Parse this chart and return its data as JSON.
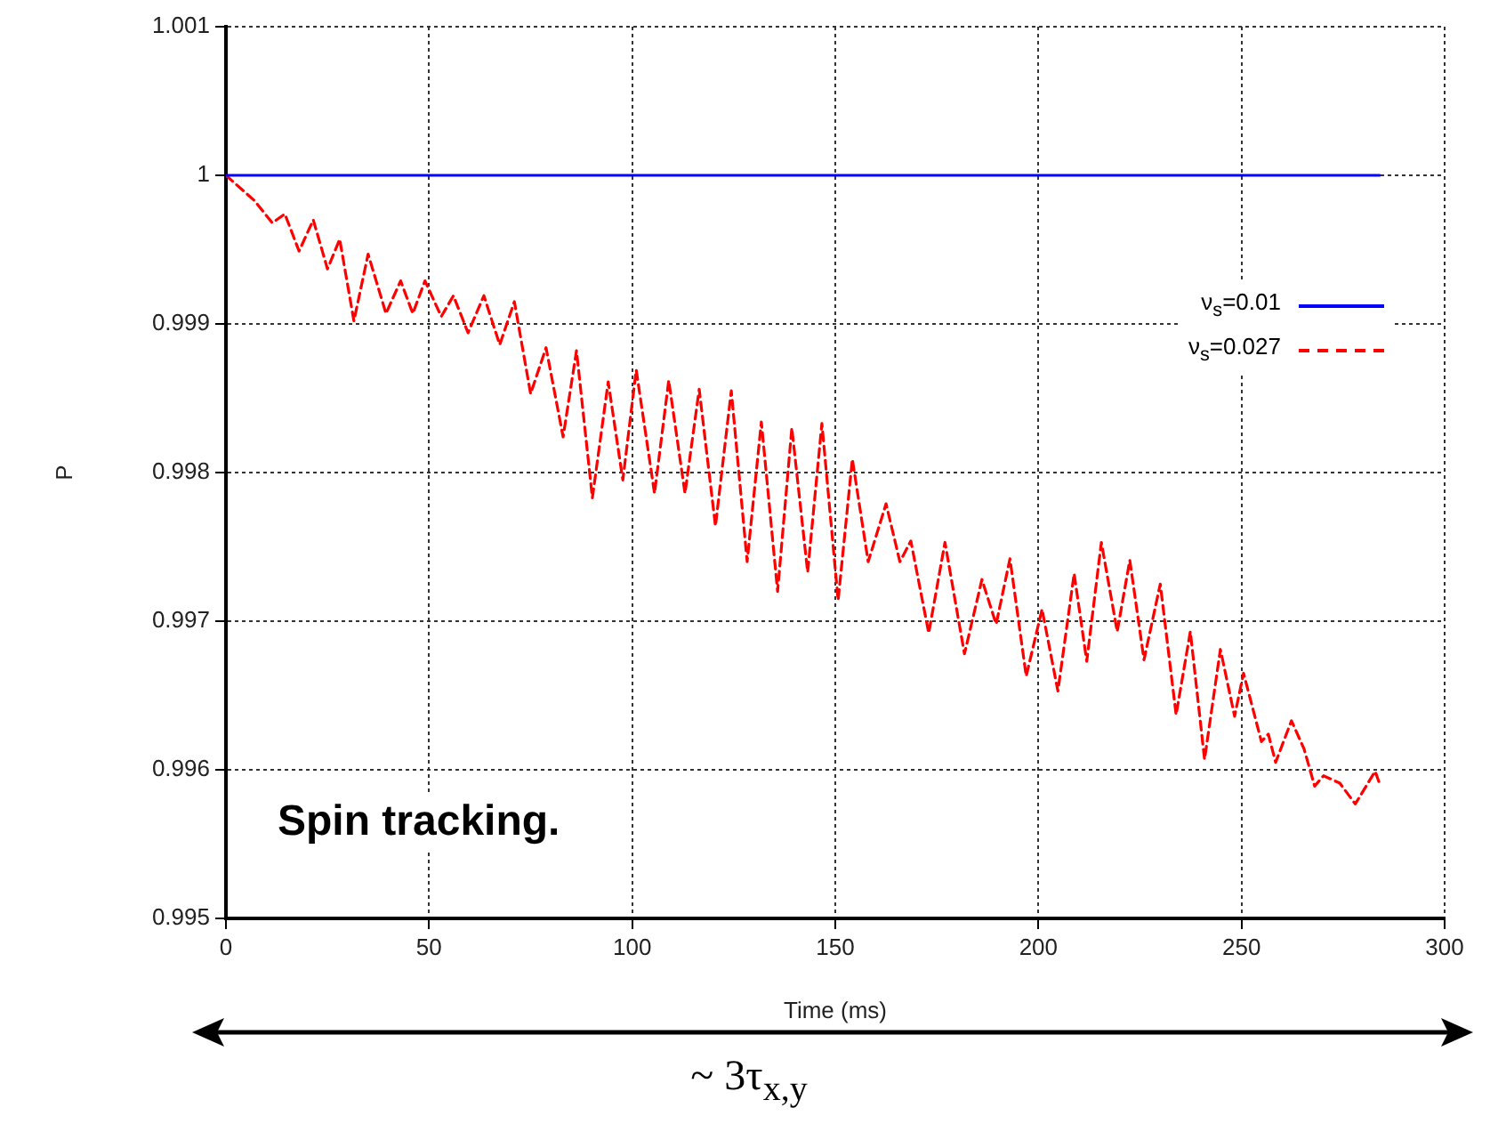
{
  "chart_data": {
    "type": "line",
    "xlabel": "Time (ms)",
    "ylabel": "P",
    "xlim": [
      0,
      300
    ],
    "xticks": [
      0,
      50,
      100,
      150,
      200,
      250,
      300
    ],
    "ylim": [
      0.995,
      1.001
    ],
    "yticks": [
      0.995,
      0.996,
      0.997,
      0.998,
      0.999,
      1,
      1.001
    ],
    "grid": true,
    "legend": "right",
    "marker": "none",
    "annotations": [
      "Spin tracking.",
      "~ 3τ$_{x,y}$"
    ],
    "series": [
      {
        "name": "ν$_{s}$=0.01",
        "color": "#0000ff",
        "line_style": "solid",
        "x": [
          0,
          284
        ],
        "values": [
          1,
          1
        ]
      },
      {
        "name": "ν$_{s}$=0.027",
        "color": "#ff0000",
        "line_style": "dashed",
        "x": [
          0,
          7,
          11.4,
          14.5,
          18,
          21.5,
          25,
          28,
          31.5,
          35,
          39.4,
          43,
          46,
          49,
          53,
          56,
          59.6,
          63.5,
          67.4,
          71,
          75,
          78.8,
          83,
          86.3,
          90.2,
          94.1,
          97.7,
          101,
          105.5,
          109,
          113,
          116.5,
          120.5,
          124.4,
          128.3,
          131.8,
          135.8,
          139.3,
          143.2,
          146.7,
          150.7,
          154.2,
          158.1,
          162.5,
          165.9,
          168.6,
          173,
          177,
          181.8,
          186.1,
          189.6,
          193,
          197,
          200.9,
          204.8,
          208.8,
          211.9,
          215.5,
          219.4,
          222.5,
          226,
          230,
          233.9,
          237.4,
          240.9,
          244.8,
          248.3,
          250.5,
          254.9,
          256.6,
          258.4,
          262.3,
          265.4,
          268,
          270.2,
          274.2,
          278,
          282.9,
          284.2
        ],
        "values": [
          1,
          0.99983,
          0.99968,
          0.99974,
          0.99949,
          0.9997,
          0.99937,
          0.99957,
          0.99902,
          0.99947,
          0.99907,
          0.99929,
          0.99907,
          0.99929,
          0.99905,
          0.99919,
          0.99894,
          0.99919,
          0.99886,
          0.99915,
          0.99853,
          0.99884,
          0.99824,
          0.99882,
          0.99783,
          0.99861,
          0.99795,
          0.99869,
          0.99786,
          0.99862,
          0.99786,
          0.99856,
          0.99764,
          0.99855,
          0.9974,
          0.99834,
          0.9972,
          0.9983,
          0.99733,
          0.99833,
          0.99714,
          0.99809,
          0.9974,
          0.99779,
          0.9974,
          0.99754,
          0.99692,
          0.99753,
          0.99678,
          0.99728,
          0.99698,
          0.99742,
          0.99663,
          0.99708,
          0.99653,
          0.99732,
          0.99673,
          0.99753,
          0.99693,
          0.99741,
          0.99674,
          0.99725,
          0.99637,
          0.99693,
          0.99607,
          0.99681,
          0.99636,
          0.99665,
          0.99619,
          0.99624,
          0.99605,
          0.99633,
          0.99614,
          0.99589,
          0.99596,
          0.99591,
          0.99577,
          0.99599,
          0.99589
        ]
      }
    ]
  }
}
